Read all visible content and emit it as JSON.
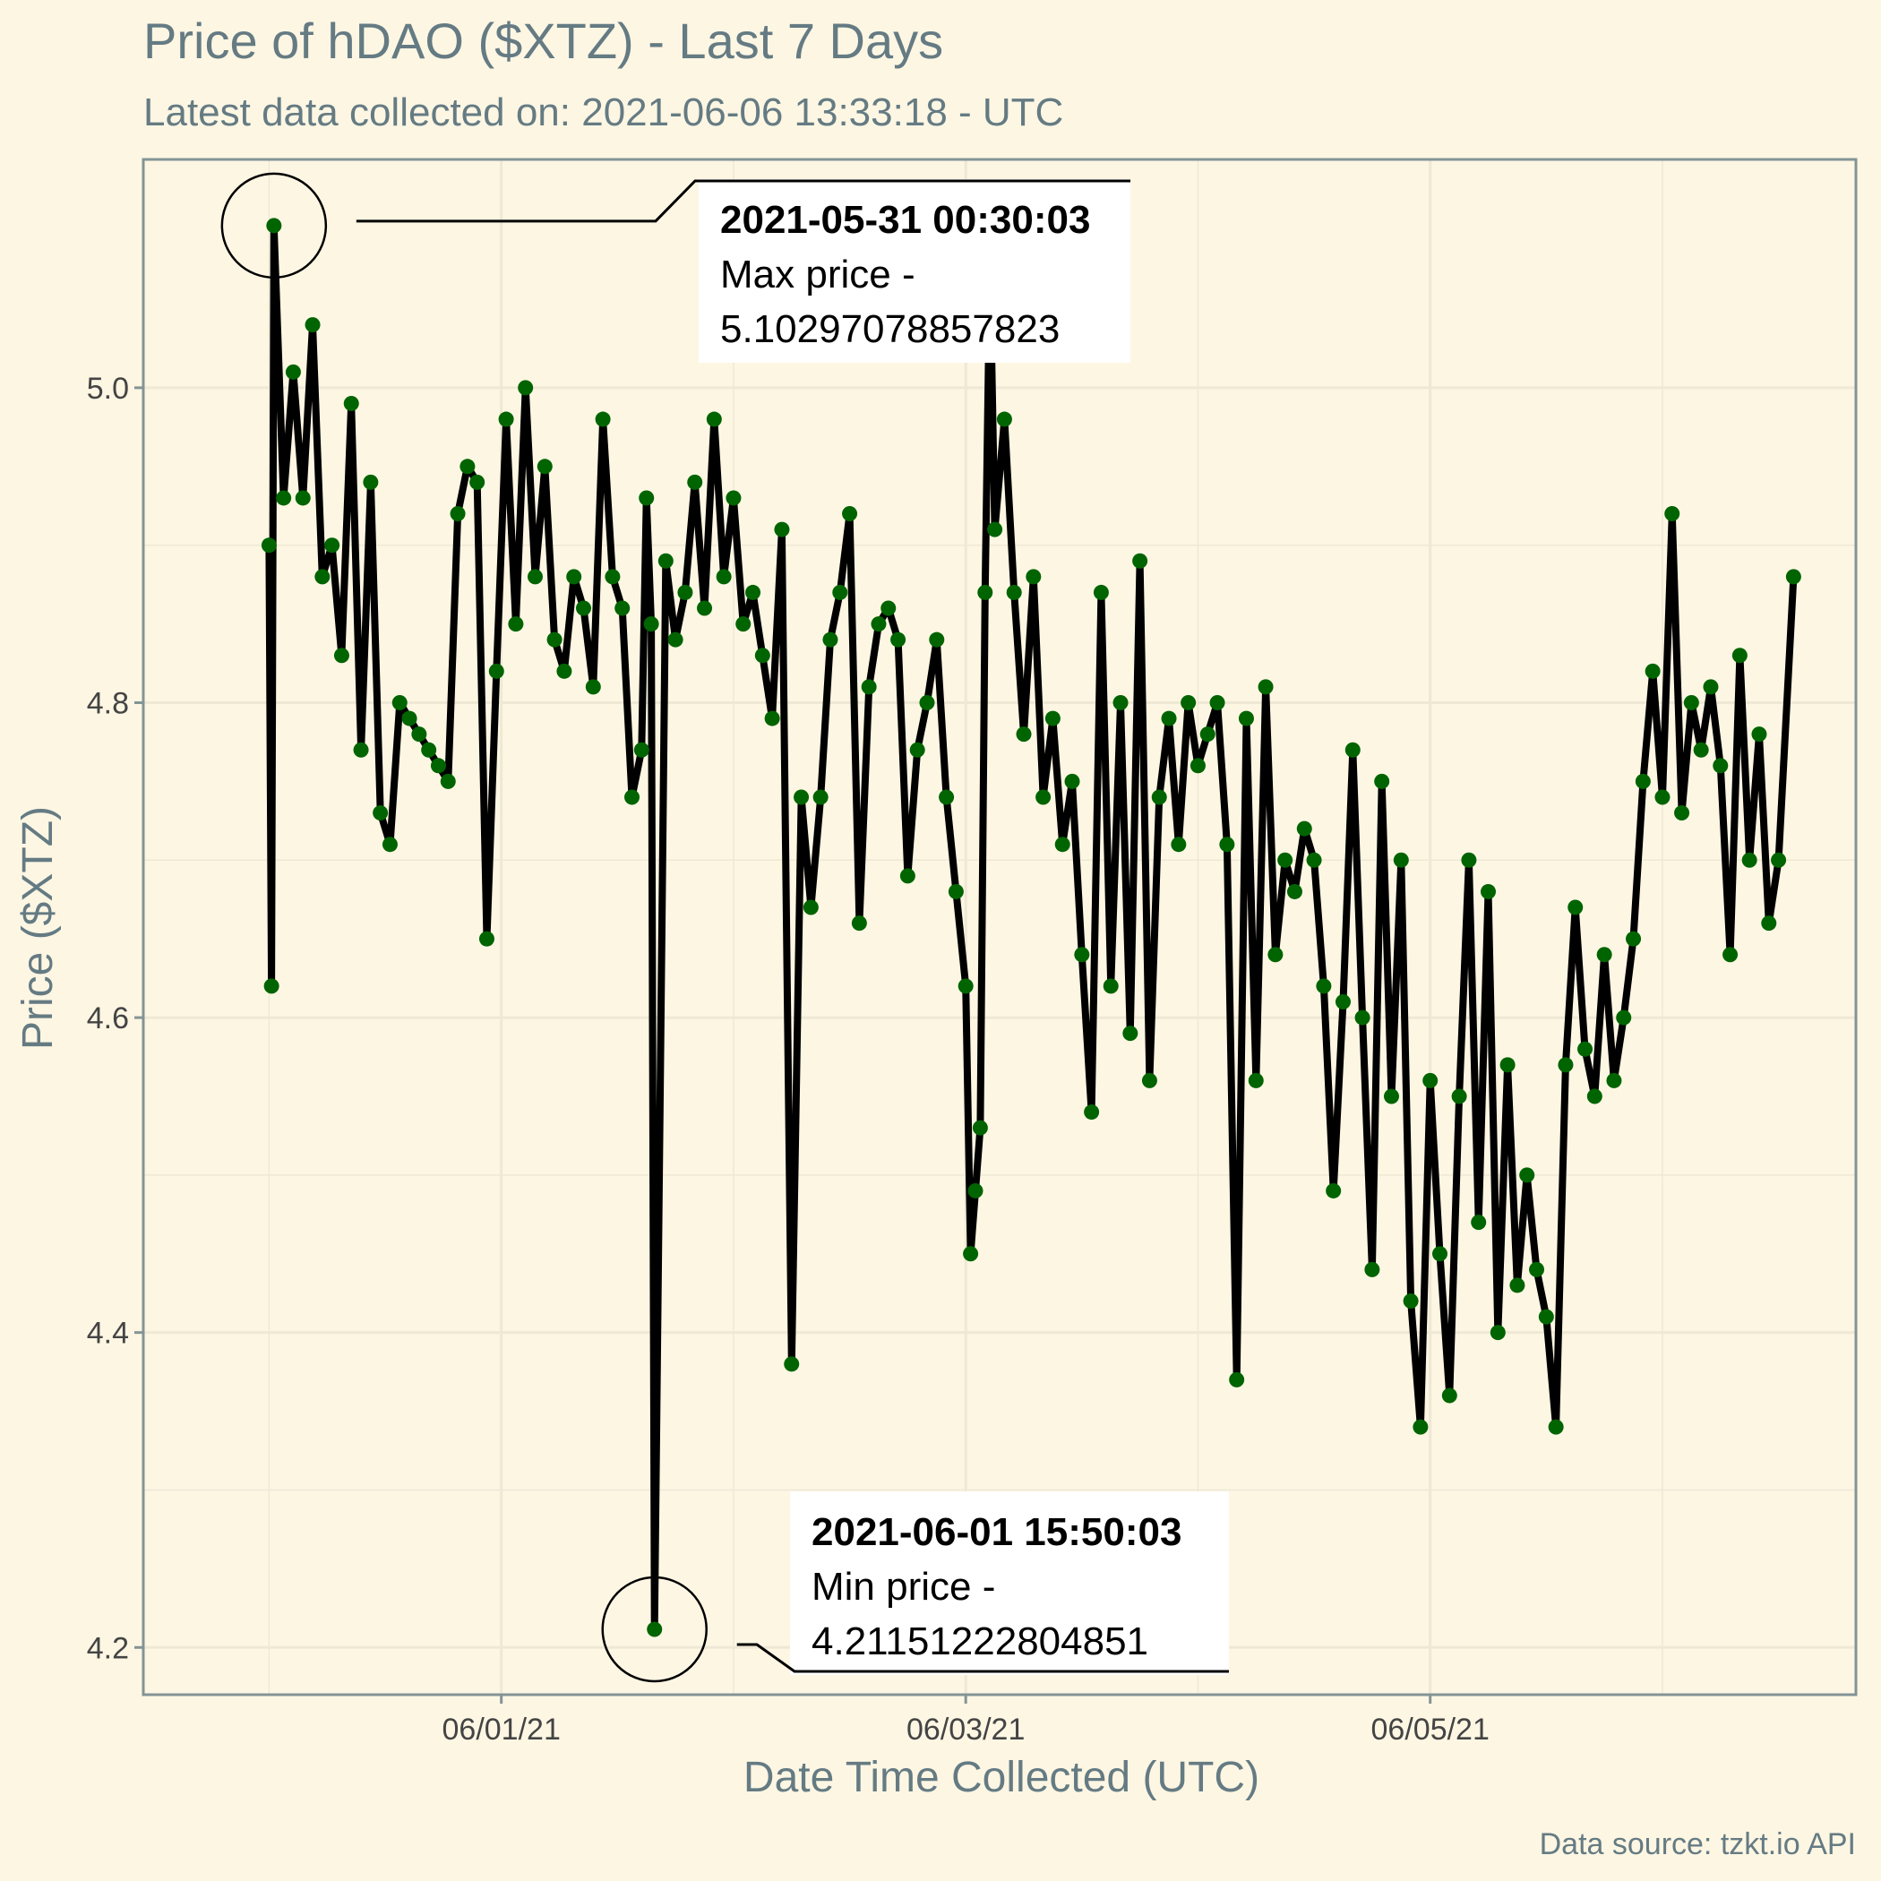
{
  "chart_data": {
    "type": "line",
    "title": "Price of hDAO ($XTZ) - Last 7 Days",
    "subtitle": "Latest data collected on: 2021-06-06 13:33:18  - UTC",
    "xlabel": "Date Time Collected (UTC)",
    "ylabel": "Price ($XTZ)",
    "caption": "Data source: tzkt.io API",
    "x_ticks": [
      "06/01/21",
      "06/03/21",
      "06/05/21"
    ],
    "y_ticks": [
      "4.2",
      "4.4",
      "4.6",
      "4.8",
      "5.0"
    ],
    "y_tick_values": [
      4.2,
      4.4,
      4.6,
      4.8,
      5.0
    ],
    "ylim": [
      4.17,
      5.145
    ],
    "xlim": [
      "2021-05-30 11:00:00",
      "2021-06-06 20:00:00"
    ],
    "x_tick_dates": [
      "2021-06-01 00:00:00",
      "2021-06-03 00:00:00",
      "2021-06-05 00:00:00"
    ],
    "grid": true,
    "line_color": "#000000",
    "point_color": "#006400",
    "series": [
      {
        "points": [
          [
            "2021-05-31 00:00:00",
            4.9
          ],
          [
            "2021-05-31 00:15:00",
            4.62
          ],
          [
            "2021-05-31 00:30:03",
            5.103
          ],
          [
            "2021-05-31 01:30:00",
            4.93
          ],
          [
            "2021-05-31 02:30:00",
            5.01
          ],
          [
            "2021-05-31 03:30:00",
            4.93
          ],
          [
            "2021-05-31 04:30:00",
            5.04
          ],
          [
            "2021-05-31 05:30:00",
            4.88
          ],
          [
            "2021-05-31 06:30:00",
            4.9
          ],
          [
            "2021-05-31 07:30:00",
            4.83
          ],
          [
            "2021-05-31 08:30:00",
            4.99
          ],
          [
            "2021-05-31 09:30:00",
            4.77
          ],
          [
            "2021-05-31 10:30:00",
            4.94
          ],
          [
            "2021-05-31 11:30:00",
            4.73
          ],
          [
            "2021-05-31 12:30:00",
            4.71
          ],
          [
            "2021-05-31 13:30:00",
            4.8
          ],
          [
            "2021-05-31 14:30:00",
            4.79
          ],
          [
            "2021-05-31 15:30:00",
            4.78
          ],
          [
            "2021-05-31 16:30:00",
            4.77
          ],
          [
            "2021-05-31 17:30:00",
            4.76
          ],
          [
            "2021-05-31 18:30:00",
            4.75
          ],
          [
            "2021-05-31 19:30:00",
            4.92
          ],
          [
            "2021-05-31 20:30:00",
            4.95
          ],
          [
            "2021-05-31 21:30:00",
            4.94
          ],
          [
            "2021-05-31 22:30:00",
            4.65
          ],
          [
            "2021-05-31 23:30:00",
            4.82
          ],
          [
            "2021-06-01 00:30:00",
            4.98
          ],
          [
            "2021-06-01 01:30:00",
            4.85
          ],
          [
            "2021-06-01 02:30:00",
            5.0
          ],
          [
            "2021-06-01 03:30:00",
            4.88
          ],
          [
            "2021-06-01 04:30:00",
            4.95
          ],
          [
            "2021-06-01 05:30:00",
            4.84
          ],
          [
            "2021-06-01 06:30:00",
            4.82
          ],
          [
            "2021-06-01 07:30:00",
            4.88
          ],
          [
            "2021-06-01 08:30:00",
            4.86
          ],
          [
            "2021-06-01 09:30:00",
            4.81
          ],
          [
            "2021-06-01 10:30:00",
            4.98
          ],
          [
            "2021-06-01 11:30:00",
            4.88
          ],
          [
            "2021-06-01 12:30:00",
            4.86
          ],
          [
            "2021-06-01 13:30:00",
            4.74
          ],
          [
            "2021-06-01 14:30:00",
            4.77
          ],
          [
            "2021-06-01 15:00:00",
            4.93
          ],
          [
            "2021-06-01 15:30:00",
            4.85
          ],
          [
            "2021-06-01 15:50:03",
            4.2115
          ],
          [
            "2021-06-01 17:00:00",
            4.89
          ],
          [
            "2021-06-01 18:00:00",
            4.84
          ],
          [
            "2021-06-01 19:00:00",
            4.87
          ],
          [
            "2021-06-01 20:00:00",
            4.94
          ],
          [
            "2021-06-01 21:00:00",
            4.86
          ],
          [
            "2021-06-01 22:00:00",
            4.98
          ],
          [
            "2021-06-01 23:00:00",
            4.88
          ],
          [
            "2021-06-02 00:00:00",
            4.93
          ],
          [
            "2021-06-02 01:00:00",
            4.85
          ],
          [
            "2021-06-02 02:00:00",
            4.87
          ],
          [
            "2021-06-02 03:00:00",
            4.83
          ],
          [
            "2021-06-02 04:00:00",
            4.79
          ],
          [
            "2021-06-02 05:00:00",
            4.91
          ],
          [
            "2021-06-02 06:00:00",
            4.38
          ],
          [
            "2021-06-02 07:00:00",
            4.74
          ],
          [
            "2021-06-02 08:00:00",
            4.67
          ],
          [
            "2021-06-02 09:00:00",
            4.74
          ],
          [
            "2021-06-02 10:00:00",
            4.84
          ],
          [
            "2021-06-02 11:00:00",
            4.87
          ],
          [
            "2021-06-02 12:00:00",
            4.92
          ],
          [
            "2021-06-02 13:00:00",
            4.66
          ],
          [
            "2021-06-02 14:00:00",
            4.81
          ],
          [
            "2021-06-02 15:00:00",
            4.85
          ],
          [
            "2021-06-02 16:00:00",
            4.86
          ],
          [
            "2021-06-02 17:00:00",
            4.84
          ],
          [
            "2021-06-02 18:00:00",
            4.69
          ],
          [
            "2021-06-02 19:00:00",
            4.77
          ],
          [
            "2021-06-02 20:00:00",
            4.8
          ],
          [
            "2021-06-02 21:00:00",
            4.84
          ],
          [
            "2021-06-02 22:00:00",
            4.74
          ],
          [
            "2021-06-02 23:00:00",
            4.68
          ],
          [
            "2021-06-03 00:00:00",
            4.62
          ],
          [
            "2021-06-03 00:30:00",
            4.45
          ],
          [
            "2021-06-03 01:00:00",
            4.49
          ],
          [
            "2021-06-03 01:30:00",
            4.53
          ],
          [
            "2021-06-03 02:00:00",
            4.87
          ],
          [
            "2021-06-03 02:30:00",
            5.08
          ],
          [
            "2021-06-03 03:00:00",
            4.91
          ],
          [
            "2021-06-03 04:00:00",
            4.98
          ],
          [
            "2021-06-03 05:00:00",
            4.87
          ],
          [
            "2021-06-03 06:00:00",
            4.78
          ],
          [
            "2021-06-03 07:00:00",
            4.88
          ],
          [
            "2021-06-03 08:00:00",
            4.74
          ],
          [
            "2021-06-03 09:00:00",
            4.79
          ],
          [
            "2021-06-03 10:00:00",
            4.71
          ],
          [
            "2021-06-03 11:00:00",
            4.75
          ],
          [
            "2021-06-03 12:00:00",
            4.64
          ],
          [
            "2021-06-03 13:00:00",
            4.54
          ],
          [
            "2021-06-03 14:00:00",
            4.87
          ],
          [
            "2021-06-03 15:00:00",
            4.62
          ],
          [
            "2021-06-03 16:00:00",
            4.8
          ],
          [
            "2021-06-03 17:00:00",
            4.59
          ],
          [
            "2021-06-03 18:00:00",
            4.89
          ],
          [
            "2021-06-03 19:00:00",
            4.56
          ],
          [
            "2021-06-03 20:00:00",
            4.74
          ],
          [
            "2021-06-03 21:00:00",
            4.79
          ],
          [
            "2021-06-03 22:00:00",
            4.71
          ],
          [
            "2021-06-03 23:00:00",
            4.8
          ],
          [
            "2021-06-04 00:00:00",
            4.76
          ],
          [
            "2021-06-04 01:00:00",
            4.78
          ],
          [
            "2021-06-04 02:00:00",
            4.8
          ],
          [
            "2021-06-04 03:00:00",
            4.71
          ],
          [
            "2021-06-04 04:00:00",
            4.37
          ],
          [
            "2021-06-04 05:00:00",
            4.79
          ],
          [
            "2021-06-04 06:00:00",
            4.56
          ],
          [
            "2021-06-04 07:00:00",
            4.81
          ],
          [
            "2021-06-04 08:00:00",
            4.64
          ],
          [
            "2021-06-04 09:00:00",
            4.7
          ],
          [
            "2021-06-04 10:00:00",
            4.68
          ],
          [
            "2021-06-04 11:00:00",
            4.72
          ],
          [
            "2021-06-04 12:00:00",
            4.7
          ],
          [
            "2021-06-04 13:00:00",
            4.62
          ],
          [
            "2021-06-04 14:00:00",
            4.49
          ],
          [
            "2021-06-04 15:00:00",
            4.61
          ],
          [
            "2021-06-04 16:00:00",
            4.77
          ],
          [
            "2021-06-04 17:00:00",
            4.6
          ],
          [
            "2021-06-04 18:00:00",
            4.44
          ],
          [
            "2021-06-04 19:00:00",
            4.75
          ],
          [
            "2021-06-04 20:00:00",
            4.55
          ],
          [
            "2021-06-04 21:00:00",
            4.7
          ],
          [
            "2021-06-04 22:00:00",
            4.42
          ],
          [
            "2021-06-04 23:00:00",
            4.34
          ],
          [
            "2021-06-05 00:00:00",
            4.56
          ],
          [
            "2021-06-05 01:00:00",
            4.45
          ],
          [
            "2021-06-05 02:00:00",
            4.36
          ],
          [
            "2021-06-05 03:00:00",
            4.55
          ],
          [
            "2021-06-05 04:00:00",
            4.7
          ],
          [
            "2021-06-05 05:00:00",
            4.47
          ],
          [
            "2021-06-05 06:00:00",
            4.68
          ],
          [
            "2021-06-05 07:00:00",
            4.4
          ],
          [
            "2021-06-05 08:00:00",
            4.57
          ],
          [
            "2021-06-05 09:00:00",
            4.43
          ],
          [
            "2021-06-05 10:00:00",
            4.5
          ],
          [
            "2021-06-05 11:00:00",
            4.44
          ],
          [
            "2021-06-05 12:00:00",
            4.41
          ],
          [
            "2021-06-05 13:00:00",
            4.34
          ],
          [
            "2021-06-05 14:00:00",
            4.57
          ],
          [
            "2021-06-05 15:00:00",
            4.67
          ],
          [
            "2021-06-05 16:00:00",
            4.58
          ],
          [
            "2021-06-05 17:00:00",
            4.55
          ],
          [
            "2021-06-05 18:00:00",
            4.64
          ],
          [
            "2021-06-05 19:00:00",
            4.56
          ],
          [
            "2021-06-05 20:00:00",
            4.6
          ],
          [
            "2021-06-05 21:00:00",
            4.65
          ],
          [
            "2021-06-05 22:00:00",
            4.75
          ],
          [
            "2021-06-05 23:00:00",
            4.82
          ],
          [
            "2021-06-06 00:00:00",
            4.74
          ],
          [
            "2021-06-06 01:00:00",
            4.92
          ],
          [
            "2021-06-06 02:00:00",
            4.73
          ],
          [
            "2021-06-06 03:00:00",
            4.8
          ],
          [
            "2021-06-06 04:00:00",
            4.77
          ],
          [
            "2021-06-06 05:00:00",
            4.81
          ],
          [
            "2021-06-06 06:00:00",
            4.76
          ],
          [
            "2021-06-06 07:00:00",
            4.64
          ],
          [
            "2021-06-06 08:00:00",
            4.83
          ],
          [
            "2021-06-06 09:00:00",
            4.7
          ],
          [
            "2021-06-06 10:00:00",
            4.78
          ],
          [
            "2021-06-06 11:00:00",
            4.66
          ],
          [
            "2021-06-06 12:00:00",
            4.7
          ],
          [
            "2021-06-06 13:33:18",
            4.88
          ]
        ]
      }
    ],
    "annotations": [
      {
        "date": "2021-05-31 00:30:03",
        "value": 5.103,
        "bold": "2021-05-31 00:30:03",
        "line1": "Max price -",
        "line2": "5.10297078857823"
      },
      {
        "date": "2021-06-01 15:50:03",
        "value": 4.2115,
        "bold": "2021-06-01 15:50:03",
        "line1": "Min price -",
        "line2": "4.21151222804851"
      }
    ]
  }
}
